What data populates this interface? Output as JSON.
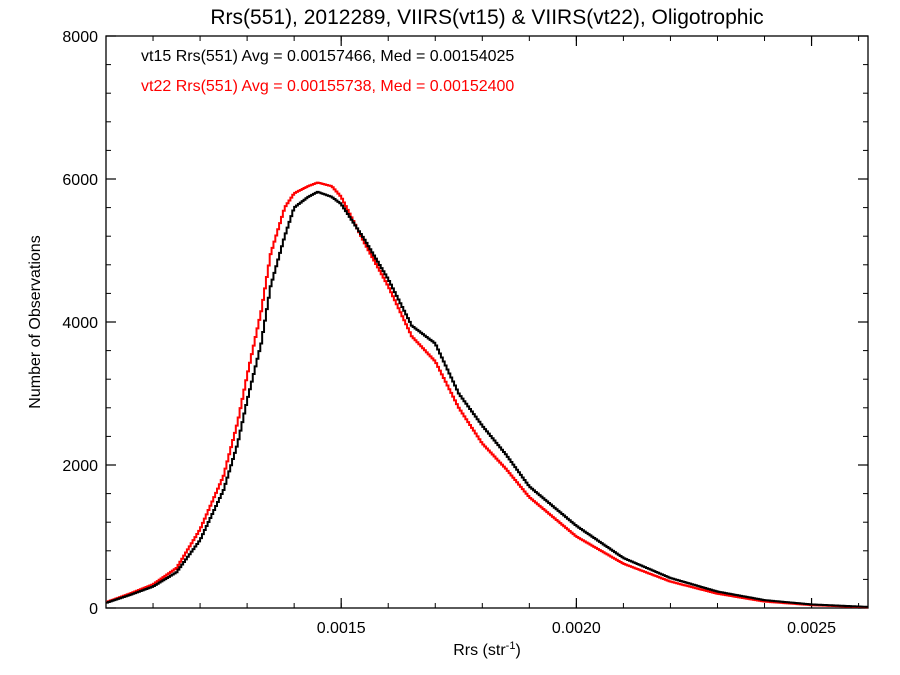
{
  "chart_data": {
    "type": "line",
    "title": "Rrs(551), 2012289, VIIRS(vt15) & VIIRS(vt22), Oligotrophic",
    "xlabel": "Rrs (str",
    "xlabel_superscript": "-1",
    "xlabel_close": ")",
    "ylabel": "Number of Observations",
    "xlim": [
      0.001,
      0.00262
    ],
    "ylim": [
      0,
      8000
    ],
    "x_ticks": [
      {
        "value": 0.0015,
        "label": "0.0015"
      },
      {
        "value": 0.002,
        "label": "0.0020"
      },
      {
        "value": 0.0025,
        "label": "0.0025"
      }
    ],
    "y_ticks": [
      {
        "value": 0,
        "label": "0"
      },
      {
        "value": 2000,
        "label": "2000"
      },
      {
        "value": 4000,
        "label": "4000"
      },
      {
        "value": 6000,
        "label": "6000"
      },
      {
        "value": 8000,
        "label": "8000"
      }
    ],
    "grid": false,
    "legend": "annotations top-left",
    "series": [
      {
        "color": "#000000",
        "annotation": "vt15 Rrs(551) Avg = 0.00157466, Med = 0.00154025",
        "x": [
          0.001,
          0.00105,
          0.0011,
          0.00115,
          0.0012,
          0.00125,
          0.00128,
          0.0013,
          0.00133,
          0.00135,
          0.00138,
          0.0014,
          0.00143,
          0.00145,
          0.00148,
          0.0015,
          0.00155,
          0.0016,
          0.00165,
          0.0017,
          0.00175,
          0.0018,
          0.00185,
          0.0019,
          0.002,
          0.0021,
          0.0022,
          0.0023,
          0.0024,
          0.0025,
          0.00262
        ],
        "values": [
          70,
          180,
          300,
          500,
          950,
          1650,
          2300,
          2900,
          3700,
          4500,
          5200,
          5600,
          5750,
          5820,
          5750,
          5650,
          5150,
          4600,
          3950,
          3700,
          3000,
          2550,
          2150,
          1700,
          1150,
          700,
          420,
          230,
          110,
          50,
          15
        ]
      },
      {
        "color": "#ff0000",
        "annotation": "vt22 Rrs(551) Avg = 0.00155738, Med = 0.00152400",
        "x": [
          0.001,
          0.00105,
          0.0011,
          0.00115,
          0.0012,
          0.00125,
          0.00128,
          0.0013,
          0.00133,
          0.00135,
          0.00138,
          0.0014,
          0.00143,
          0.00145,
          0.00148,
          0.0015,
          0.00155,
          0.0016,
          0.00165,
          0.0017,
          0.00175,
          0.0018,
          0.00185,
          0.0019,
          0.002,
          0.0021,
          0.0022,
          0.0023,
          0.0024,
          0.0025,
          0.00262
        ],
        "values": [
          80,
          200,
          330,
          560,
          1100,
          1850,
          2600,
          3250,
          4150,
          4950,
          5600,
          5800,
          5900,
          5950,
          5900,
          5750,
          5100,
          4500,
          3800,
          3450,
          2800,
          2300,
          1950,
          1550,
          1000,
          620,
          370,
          200,
          90,
          40,
          10
        ]
      }
    ]
  }
}
